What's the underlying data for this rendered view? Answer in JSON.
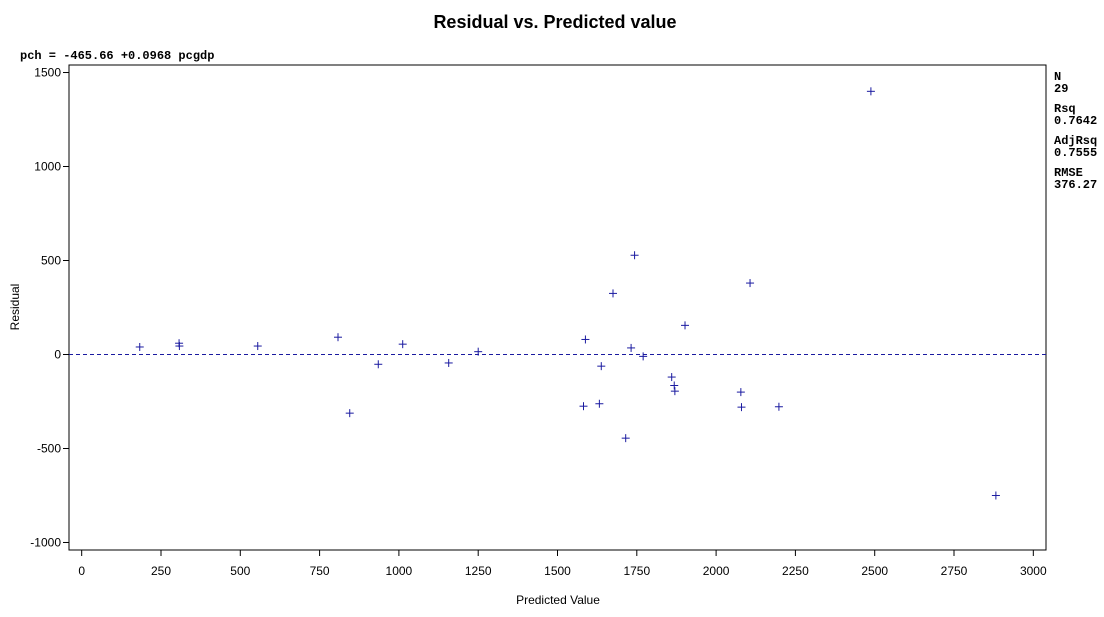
{
  "chart_data": {
    "type": "scatter",
    "title": "Residual vs. Predicted value",
    "equation": "pch = -465.66 +0.0968 pcgdp",
    "xlabel": "Predicted Value",
    "ylabel": "Residual",
    "xlim": [
      -40,
      3040
    ],
    "ylim": [
      -1040,
      1540
    ],
    "xticks": [
      0,
      250,
      500,
      750,
      1000,
      1250,
      1500,
      1750,
      2000,
      2250,
      2500,
      2750,
      3000
    ],
    "yticks": [
      -1000,
      -500,
      0,
      500,
      1000,
      1500
    ],
    "reference_line_y": 0,
    "marker": "+",
    "color": "#1a1aa0",
    "stats": [
      {
        "label": "N",
        "value": "29"
      },
      {
        "label": "Rsq",
        "value": "0.7642"
      },
      {
        "label": "AdjRsq",
        "value": "0.7555"
      },
      {
        "label": "RMSE",
        "value": "376.27"
      }
    ],
    "points": [
      {
        "x": 183,
        "y": 40
      },
      {
        "x": 307,
        "y": 60
      },
      {
        "x": 308,
        "y": 45
      },
      {
        "x": 555,
        "y": 45
      },
      {
        "x": 808,
        "y": 92
      },
      {
        "x": 845,
        "y": -312
      },
      {
        "x": 935,
        "y": -52
      },
      {
        "x": 1012,
        "y": 55
      },
      {
        "x": 1157,
        "y": -45
      },
      {
        "x": 1250,
        "y": 15
      },
      {
        "x": 1582,
        "y": -275
      },
      {
        "x": 1588,
        "y": 80
      },
      {
        "x": 1632,
        "y": -262
      },
      {
        "x": 1638,
        "y": -62
      },
      {
        "x": 1675,
        "y": 325
      },
      {
        "x": 1715,
        "y": -445
      },
      {
        "x": 1732,
        "y": 35
      },
      {
        "x": 1743,
        "y": 528
      },
      {
        "x": 1770,
        "y": -10
      },
      {
        "x": 1860,
        "y": -120
      },
      {
        "x": 1868,
        "y": -165
      },
      {
        "x": 1870,
        "y": -195
      },
      {
        "x": 1902,
        "y": 155
      },
      {
        "x": 2078,
        "y": -200
      },
      {
        "x": 2080,
        "y": -280
      },
      {
        "x": 2107,
        "y": 380
      },
      {
        "x": 2198,
        "y": -278
      },
      {
        "x": 2488,
        "y": 1400
      },
      {
        "x": 2882,
        "y": -750
      }
    ]
  }
}
